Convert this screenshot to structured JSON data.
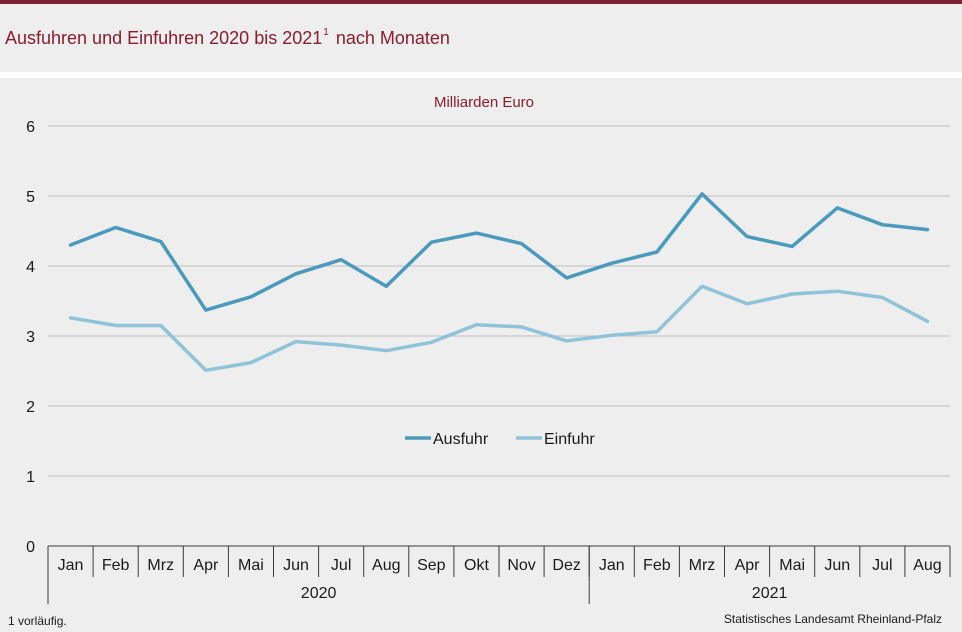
{
  "header": {
    "title": "Ausfuhren und Einfuhren 2020 bis 2021",
    "title_footnote_marker": "1",
    "title_suffix": "nach Monaten"
  },
  "footer": {
    "footnote": "1 vorläufig.",
    "source": "Statistisches Landesamt Rheinland-Pfalz"
  },
  "colors": {
    "accent": "#7d2232",
    "title": "#8a1c2f",
    "ausfuhr": "#4a9abd",
    "einfuhr": "#8fc3da",
    "grid": "#bdbdbd"
  },
  "chart_data": {
    "type": "line",
    "title": "",
    "ylabel": "Milliarden Euro",
    "xlabel": "",
    "ylim": [
      0,
      6
    ],
    "yticks": [
      0,
      1,
      2,
      3,
      4,
      5,
      6
    ],
    "grid": true,
    "legend_position": "center",
    "categories": [
      "Jan",
      "Feb",
      "Mrz",
      "Apr",
      "Mai",
      "Jun",
      "Jul",
      "Aug",
      "Sep",
      "Okt",
      "Nov",
      "Dez",
      "Jan",
      "Feb",
      "Mrz",
      "Apr",
      "Mai",
      "Jun",
      "Jul",
      "Aug"
    ],
    "groups": [
      {
        "label": "2020",
        "count": 12
      },
      {
        "label": "2021",
        "count": 8
      }
    ],
    "series": [
      {
        "name": "Ausfuhr",
        "color": "#4a9abd",
        "values": [
          4.3,
          4.55,
          4.35,
          3.37,
          3.56,
          3.89,
          4.09,
          3.71,
          4.34,
          4.47,
          4.32,
          3.83,
          4.04,
          4.2,
          5.03,
          4.42,
          4.28,
          4.83,
          4.59,
          4.52
        ]
      },
      {
        "name": "Einfuhr",
        "color": "#8fc3da",
        "values": [
          3.26,
          3.15,
          3.15,
          2.51,
          2.62,
          2.92,
          2.87,
          2.79,
          2.91,
          3.16,
          3.13,
          2.93,
          3.01,
          3.06,
          3.71,
          3.46,
          3.6,
          3.64,
          3.55,
          3.21
        ]
      }
    ]
  }
}
